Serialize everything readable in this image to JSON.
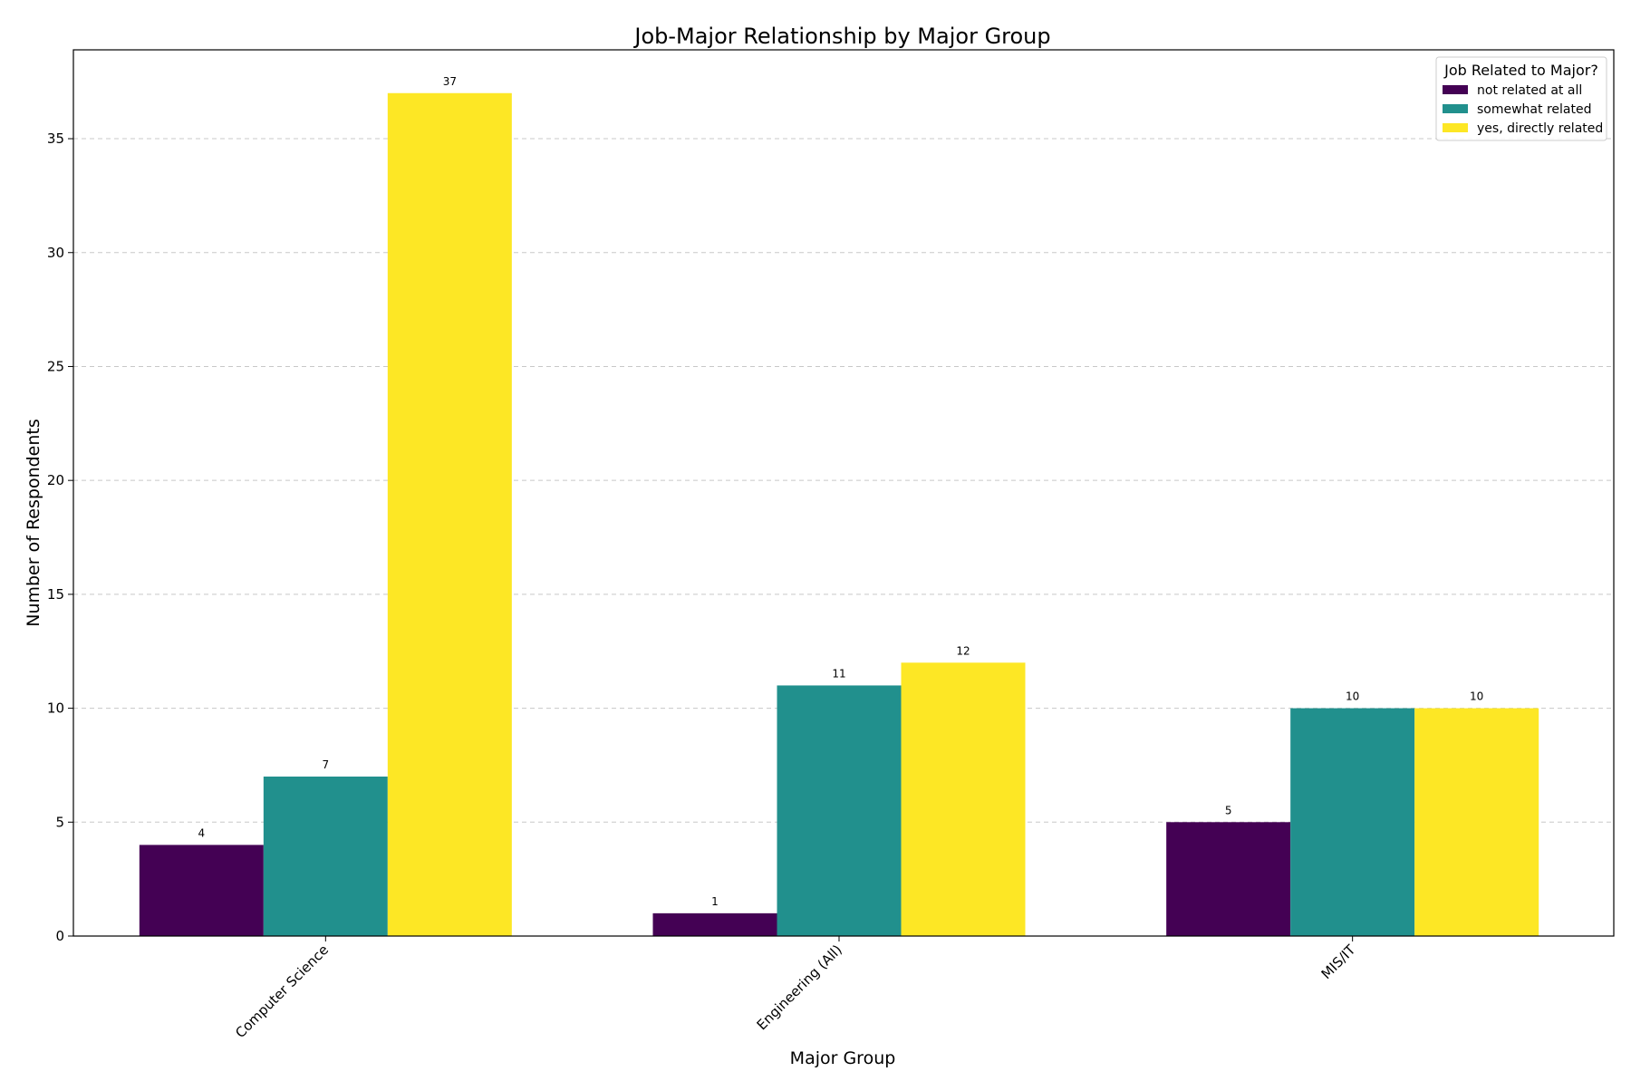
{
  "chart_data": {
    "type": "bar",
    "title": "Job-Major Relationship by Major Group",
    "xlabel": "Major Group",
    "ylabel": "Number of Respondents",
    "categories": [
      "Computer Science",
      "Engineering (All)",
      "MIS/IT"
    ],
    "series": [
      {
        "name": "not related at all",
        "values": [
          4,
          1,
          5
        ],
        "color": "#440154"
      },
      {
        "name": "somewhat related",
        "values": [
          7,
          11,
          10
        ],
        "color": "#21908d"
      },
      {
        "name": "yes, directly related",
        "values": [
          37,
          12,
          10
        ],
        "color": "#fde725"
      }
    ],
    "ylim": [
      0,
      38.9
    ],
    "yticks": [
      0,
      5,
      10,
      15,
      20,
      25,
      30,
      35
    ],
    "grid": "y-dashed",
    "legend": {
      "title": "Job Related to Major?",
      "placement": "top-right"
    },
    "data_labels": true
  }
}
